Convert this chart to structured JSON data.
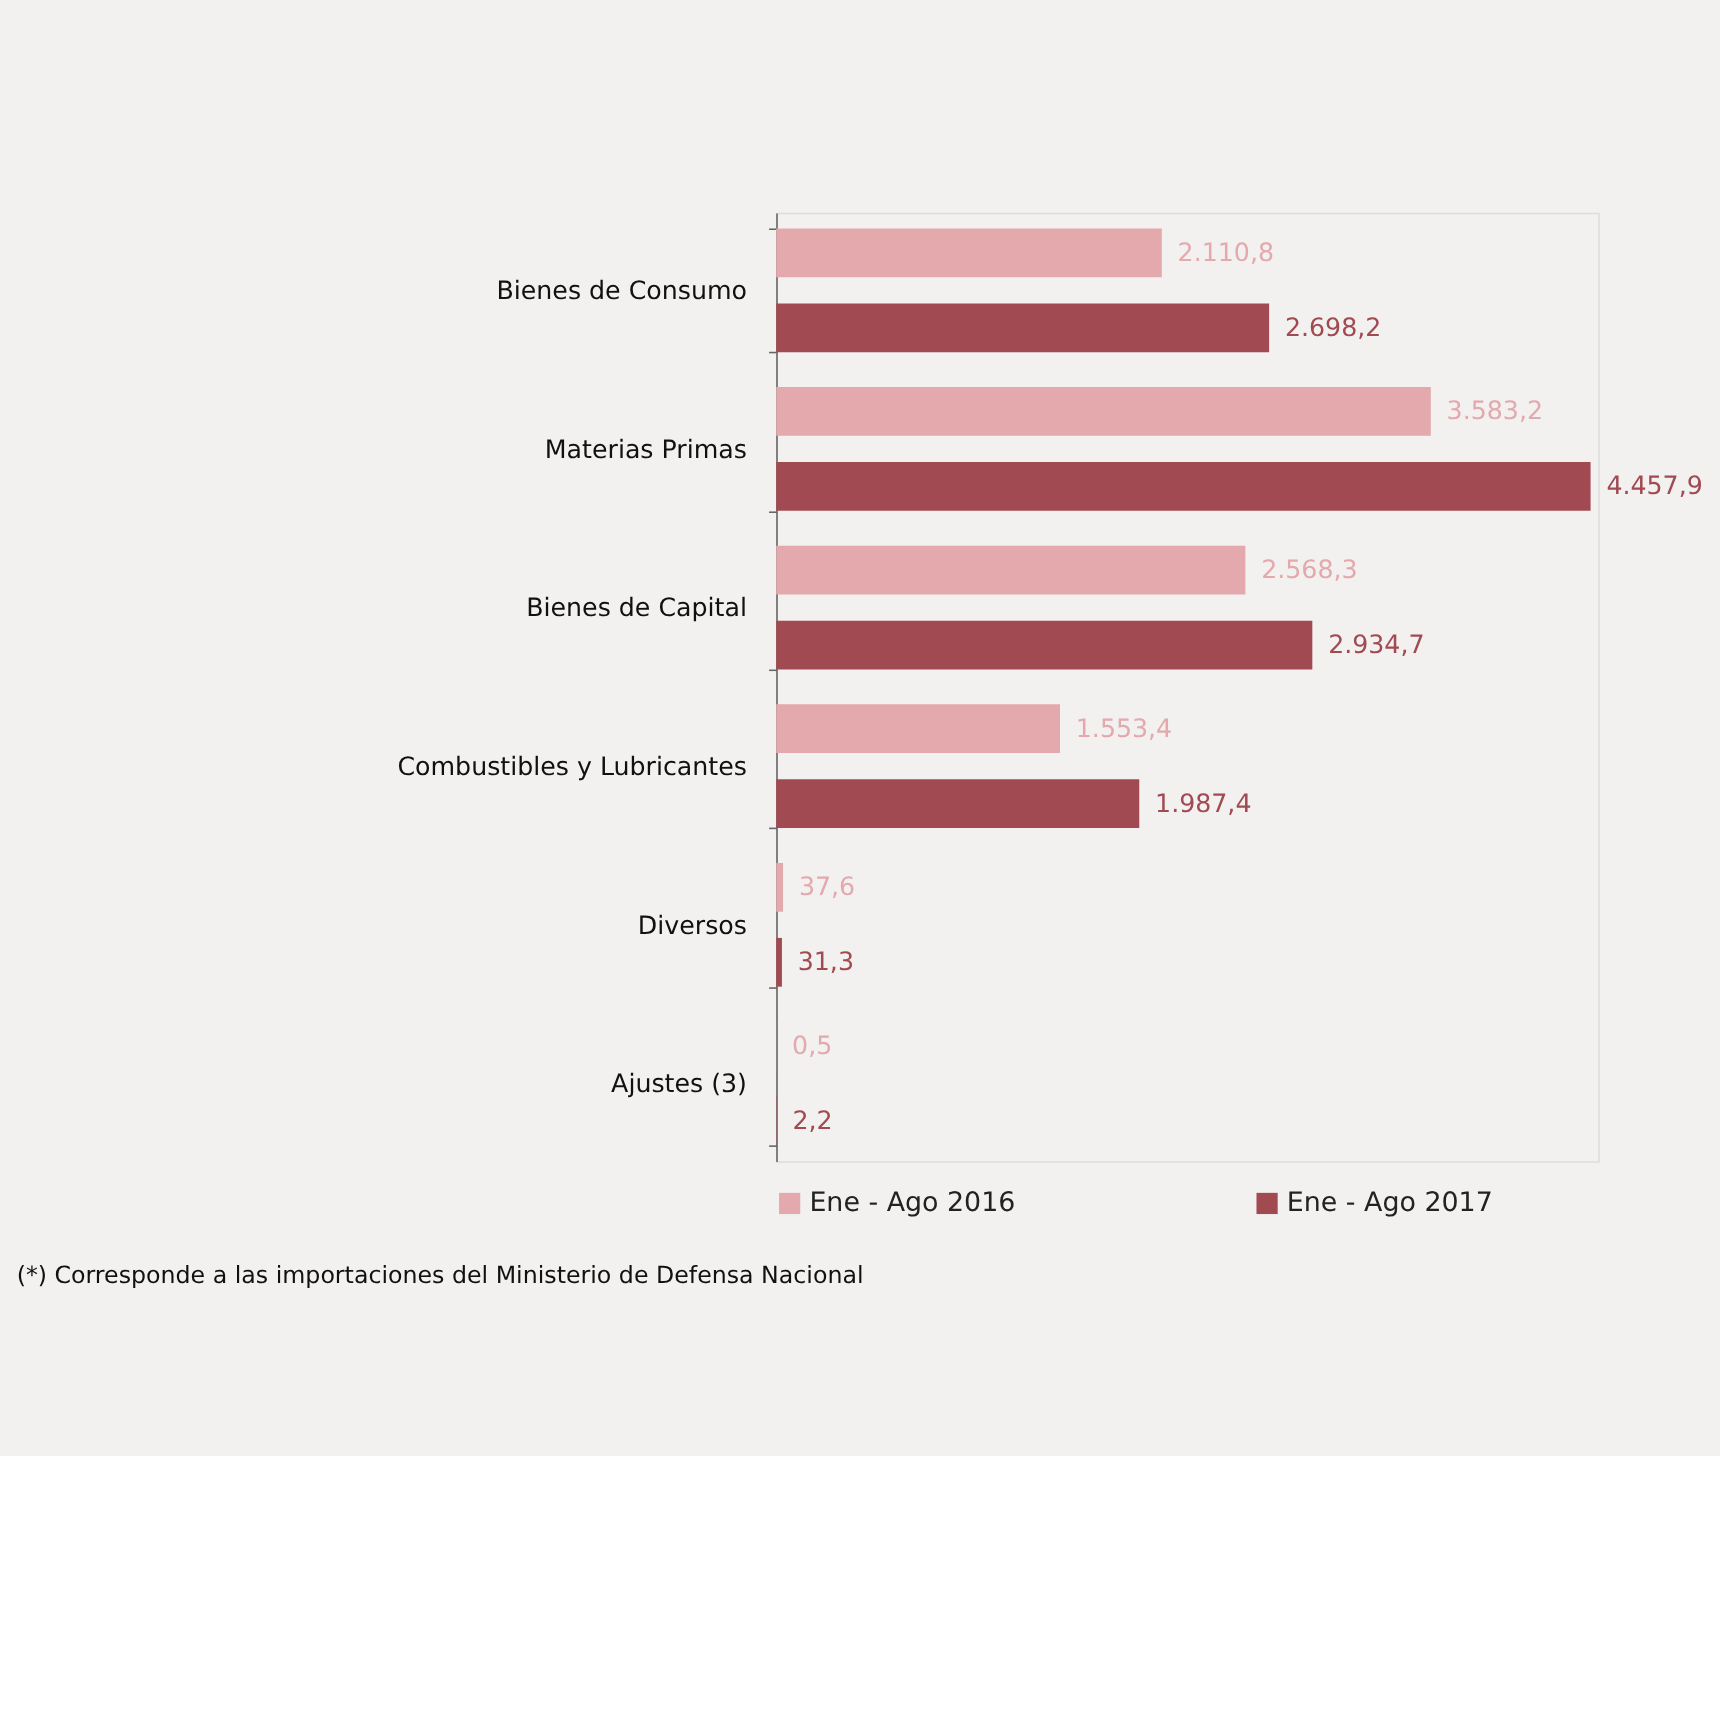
{
  "chart_data": {
    "type": "bar",
    "orientation": "horizontal",
    "categories": [
      "Bienes de Consumo",
      "Materias Primas",
      "Bienes de Capital",
      "Combustibles y Lubricantes",
      "Diversos",
      "Ajustes (3)"
    ],
    "series": [
      {
        "name": "Ene - Ago 2016",
        "color": "#e3a9ad",
        "values": [
          2110.8,
          3583.2,
          2568.3,
          1553.4,
          37.6,
          0.5
        ],
        "value_labels": [
          "2.110,8",
          "3.583,2",
          "2.568,3",
          "1.553,4",
          "37,6",
          "0,5"
        ]
      },
      {
        "name": "Ene - Ago 2017",
        "color": "#a24a52",
        "values": [
          2698.2,
          4457.9,
          2934.7,
          1987.4,
          31.3,
          2.2
        ],
        "value_labels": [
          "2.698,2",
          "4.457,9",
          "2.934,7",
          "1.987,4",
          "31,3",
          "2,2"
        ]
      }
    ],
    "relative": false,
    "legend": "bottom",
    "annotations": [
      "(*) Corresponde a las importaciones del Ministerio de Defensa Nacional"
    ]
  }
}
